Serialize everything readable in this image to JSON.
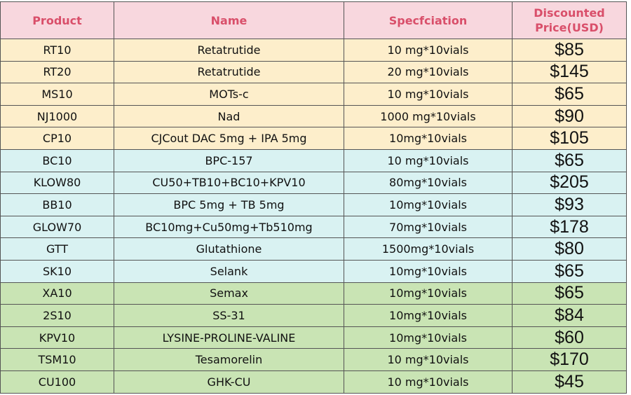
{
  "table": {
    "header": [
      "Product",
      "Name",
      "Specfciation",
      "Discounted Price(USD)"
    ],
    "rows": [
      [
        "RT10",
        "Retatrutide",
        "10 mg*10vials",
        "$85"
      ],
      [
        "RT20",
        "Retatrutide",
        "20 mg*10vials",
        "$145"
      ],
      [
        "MS10",
        "MOTs-c",
        "10 mg*10vials",
        "$65"
      ],
      [
        "NJ1000",
        "Nad",
        "1000 mg*10vials",
        "$90"
      ],
      [
        "CP10",
        "CJCout DAC 5mg + IPA 5mg",
        "10mg*10vials",
        "$105"
      ],
      [
        "BC10",
        "BPC-157",
        "10 mg*10vials",
        "$65"
      ],
      [
        "KLOW80",
        "CU50+TB10+BC10+KPV10",
        "80mg*10vials",
        "$205"
      ],
      [
        "BB10",
        "BPC 5mg + TB 5mg",
        "10mg*10vials",
        "$93"
      ],
      [
        "GLOW70",
        "BC10mg+Cu50mg+Tb510mg",
        "70mg*10vials",
        "$178"
      ],
      [
        "GTT",
        "Glutathione",
        "1500mg*10vials",
        "$80"
      ],
      [
        "SK10",
        "Selank",
        "10mg*10vials",
        "$65"
      ],
      [
        "XA10",
        "Semax",
        "10mg*10vials",
        "$65"
      ],
      [
        "2S10",
        "SS-31",
        "10mg*10vials",
        "$84"
      ],
      [
        "KPV10",
        "LYSINE-PROLINE-VALINE",
        "10mg*10vials",
        "$60"
      ],
      [
        "TSM10",
        "Tesamorelin",
        "10 mg*10vials",
        "$170"
      ],
      [
        "CU100",
        "GHK-CU",
        "10 mg*10vials",
        "$45"
      ]
    ]
  }
}
